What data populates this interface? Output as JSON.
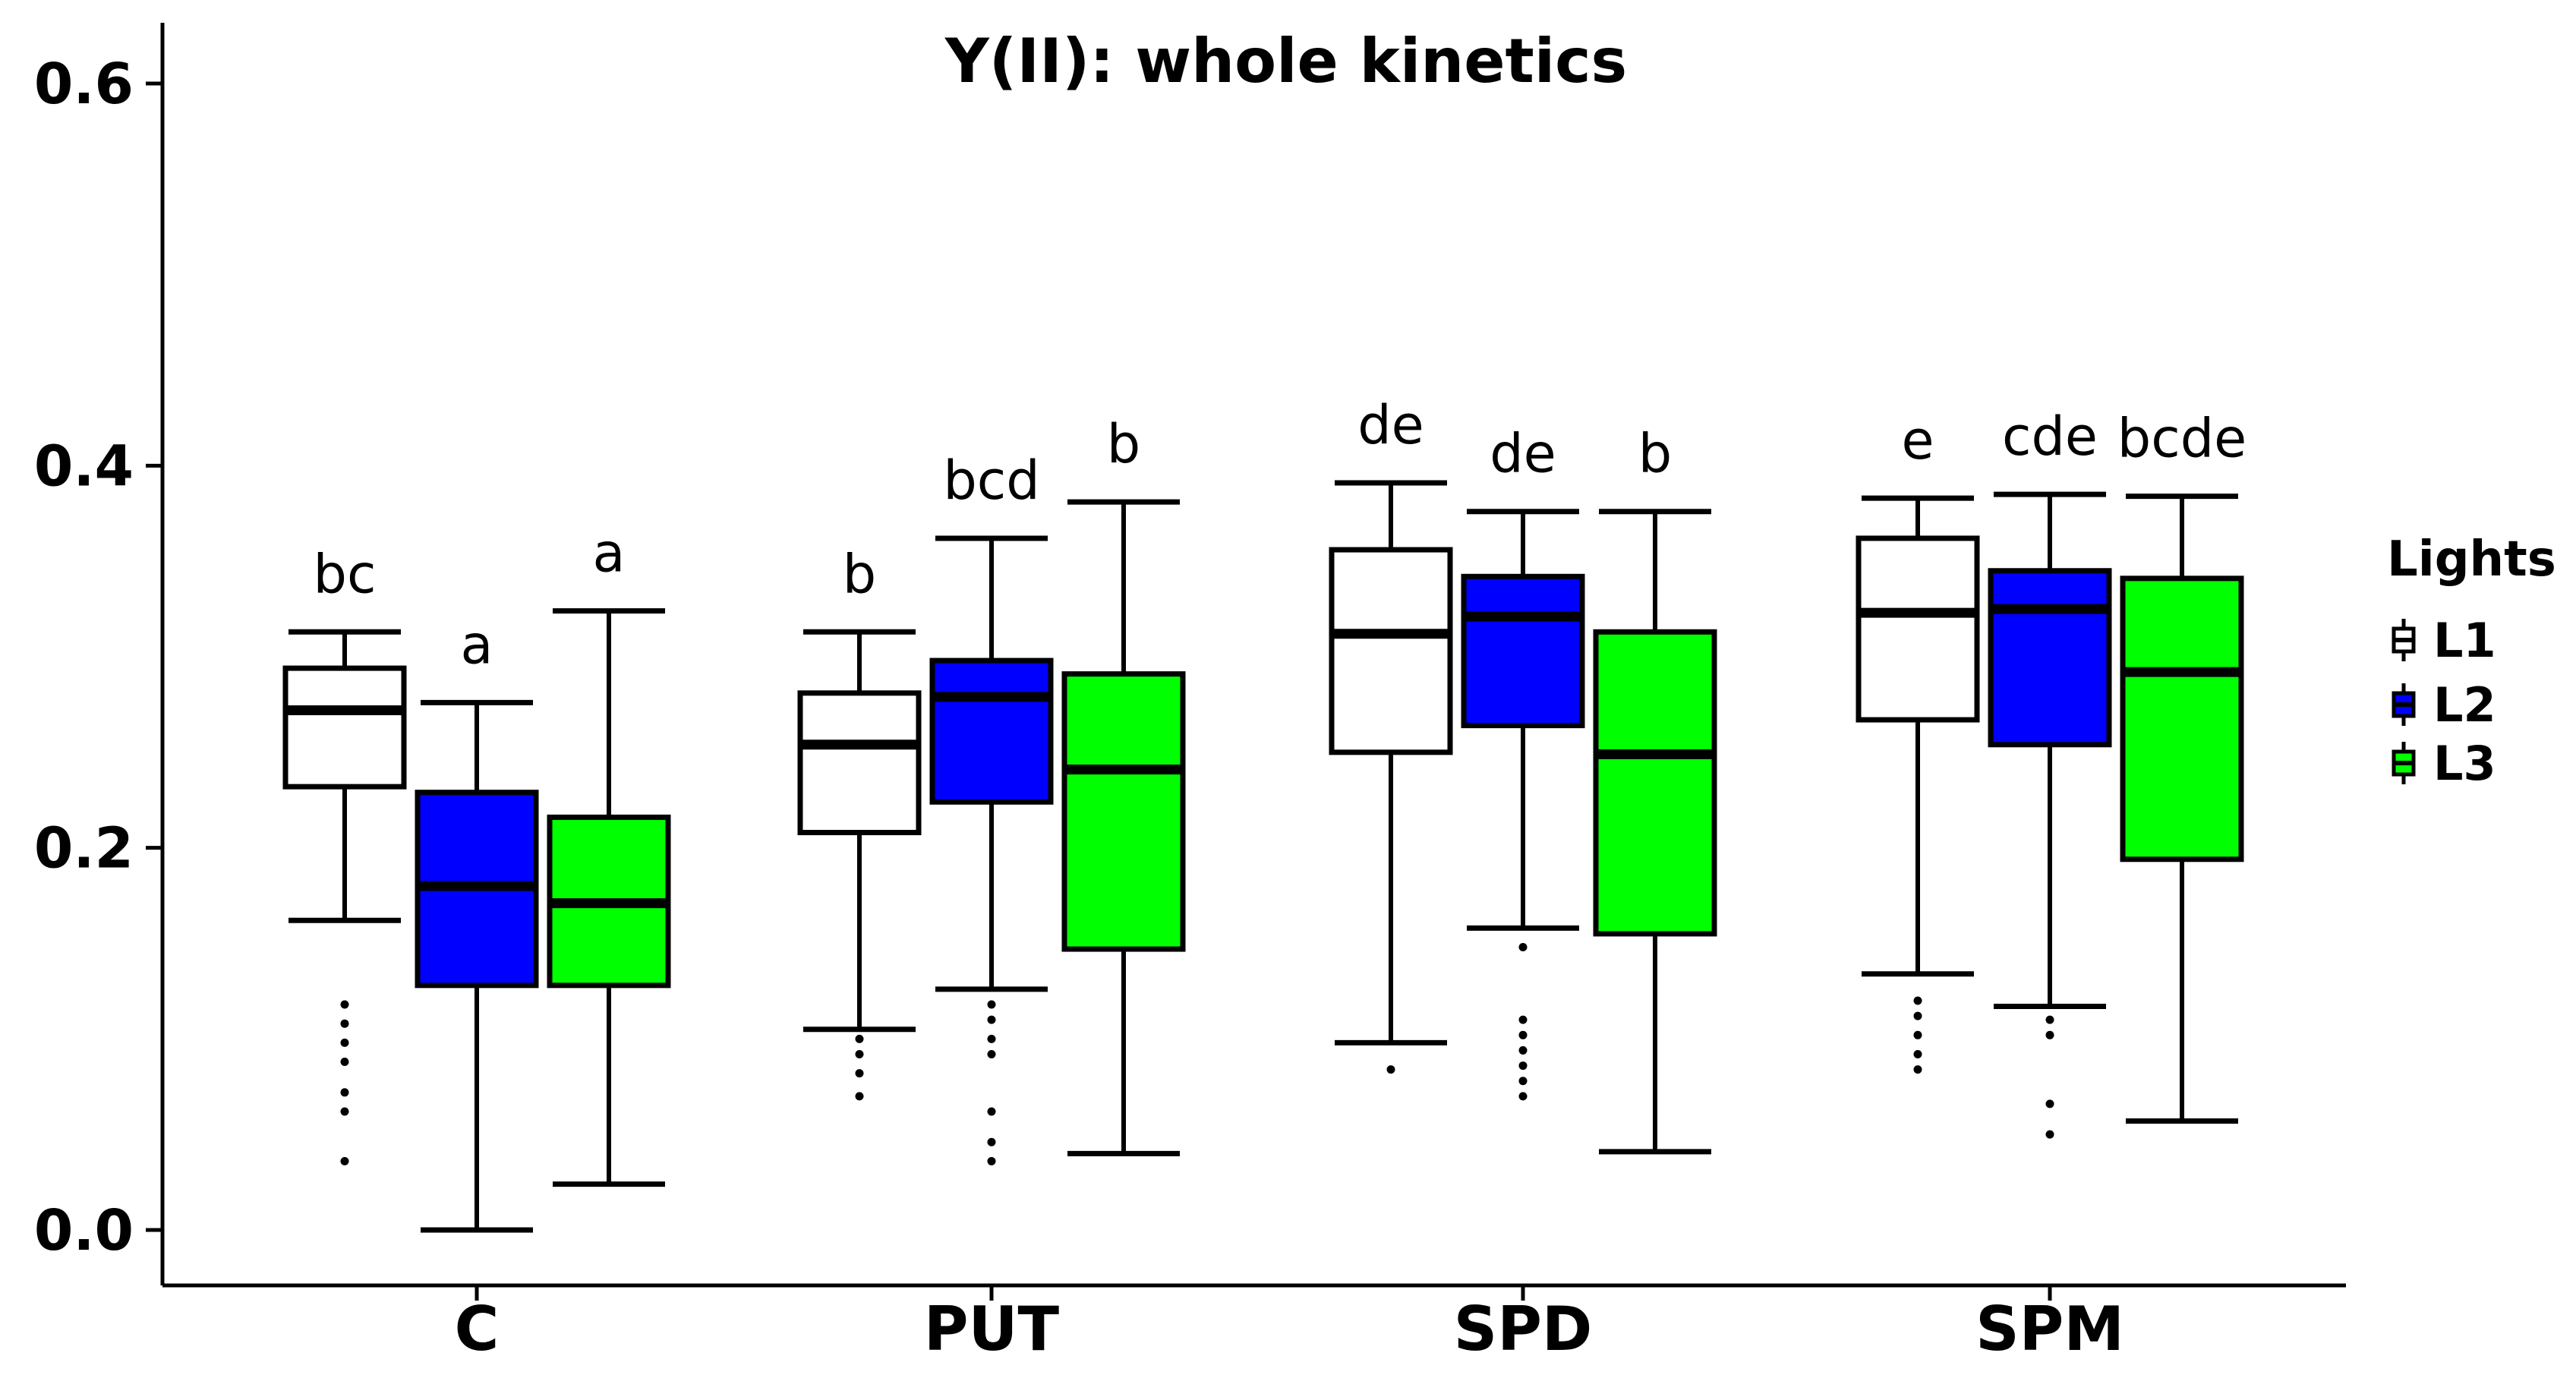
{
  "chart_data": {
    "type": "box",
    "title": "Y(II): whole kinetics",
    "xlabel": "",
    "ylabel": "",
    "ylim": [
      -0.03,
      0.625
    ],
    "yticks": [
      0.0,
      0.2,
      0.4,
      0.6
    ],
    "ytick_labels": [
      "0.0",
      "0.2",
      "0.4",
      "0.6"
    ],
    "categories": [
      "C",
      "PUT",
      "SPD",
      "SPM"
    ],
    "legend": {
      "title": "Lights",
      "position": "right",
      "entries": [
        {
          "label": "L1",
          "color": "#ffffff"
        },
        {
          "label": "L2",
          "color": "#0000ff"
        },
        {
          "label": "L3",
          "color": "#00ff00"
        }
      ]
    },
    "groups": [
      {
        "category": "C",
        "boxes": [
          {
            "series": "L1",
            "color": "#ffffff",
            "whisker_low": 0.162,
            "q1": 0.232,
            "median": 0.272,
            "q3": 0.294,
            "whisker_high": 0.313,
            "outliers": [
              0.036,
              0.062,
              0.072,
              0.088,
              0.098,
              0.108,
              0.118
            ],
            "letter": "bc"
          },
          {
            "series": "L2",
            "color": "#0000ff",
            "whisker_low": 0.0,
            "q1": 0.128,
            "median": 0.18,
            "q3": 0.229,
            "whisker_high": 0.276,
            "outliers": [],
            "letter": "a"
          },
          {
            "series": "L3",
            "color": "#00ff00",
            "whisker_low": 0.024,
            "q1": 0.128,
            "median": 0.171,
            "q3": 0.216,
            "whisker_high": 0.324,
            "outliers": [],
            "letter": "a"
          }
        ]
      },
      {
        "category": "PUT",
        "boxes": [
          {
            "series": "L1",
            "color": "#ffffff",
            "whisker_low": 0.105,
            "q1": 0.208,
            "median": 0.254,
            "q3": 0.281,
            "whisker_high": 0.313,
            "outliers": [
              0.07,
              0.082,
              0.092,
              0.1
            ],
            "letter": "b"
          },
          {
            "series": "L2",
            "color": "#0000ff",
            "whisker_low": 0.126,
            "q1": 0.224,
            "median": 0.279,
            "q3": 0.298,
            "whisker_high": 0.362,
            "outliers": [
              0.036,
              0.046,
              0.062,
              0.092,
              0.1,
              0.11,
              0.118
            ],
            "letter": "bcd"
          },
          {
            "series": "L3",
            "color": "#00ff00",
            "whisker_low": 0.04,
            "q1": 0.147,
            "median": 0.241,
            "q3": 0.291,
            "whisker_high": 0.381,
            "outliers": [],
            "letter": "b"
          }
        ]
      },
      {
        "category": "SPD",
        "boxes": [
          {
            "series": "L1",
            "color": "#ffffff",
            "whisker_low": 0.098,
            "q1": 0.25,
            "median": 0.312,
            "q3": 0.356,
            "whisker_high": 0.391,
            "outliers": [
              0.084
            ],
            "letter": "de"
          },
          {
            "series": "L2",
            "color": "#0000ff",
            "whisker_low": 0.158,
            "q1": 0.264,
            "median": 0.321,
            "q3": 0.342,
            "whisker_high": 0.376,
            "outliers": [
              0.07,
              0.078,
              0.086,
              0.094,
              0.102,
              0.11,
              0.148
            ],
            "letter": "de"
          },
          {
            "series": "L3",
            "color": "#00ff00",
            "whisker_low": 0.041,
            "q1": 0.155,
            "median": 0.249,
            "q3": 0.313,
            "whisker_high": 0.376,
            "outliers": [],
            "letter": "b"
          }
        ]
      },
      {
        "category": "SPM",
        "boxes": [
          {
            "series": "L1",
            "color": "#ffffff",
            "whisker_low": 0.134,
            "q1": 0.267,
            "median": 0.323,
            "q3": 0.362,
            "whisker_high": 0.383,
            "outliers": [
              0.084,
              0.092,
              0.102,
              0.112,
              0.12
            ],
            "letter": "e"
          },
          {
            "series": "L2",
            "color": "#0000ff",
            "whisker_low": 0.117,
            "q1": 0.254,
            "median": 0.325,
            "q3": 0.345,
            "whisker_high": 0.385,
            "outliers": [
              0.05,
              0.066,
              0.102,
              0.11
            ],
            "letter": "cde"
          },
          {
            "series": "L3",
            "color": "#00ff00",
            "whisker_low": 0.057,
            "q1": 0.194,
            "median": 0.292,
            "q3": 0.341,
            "whisker_high": 0.384,
            "outliers": [],
            "letter": "bcde"
          }
        ]
      }
    ]
  }
}
